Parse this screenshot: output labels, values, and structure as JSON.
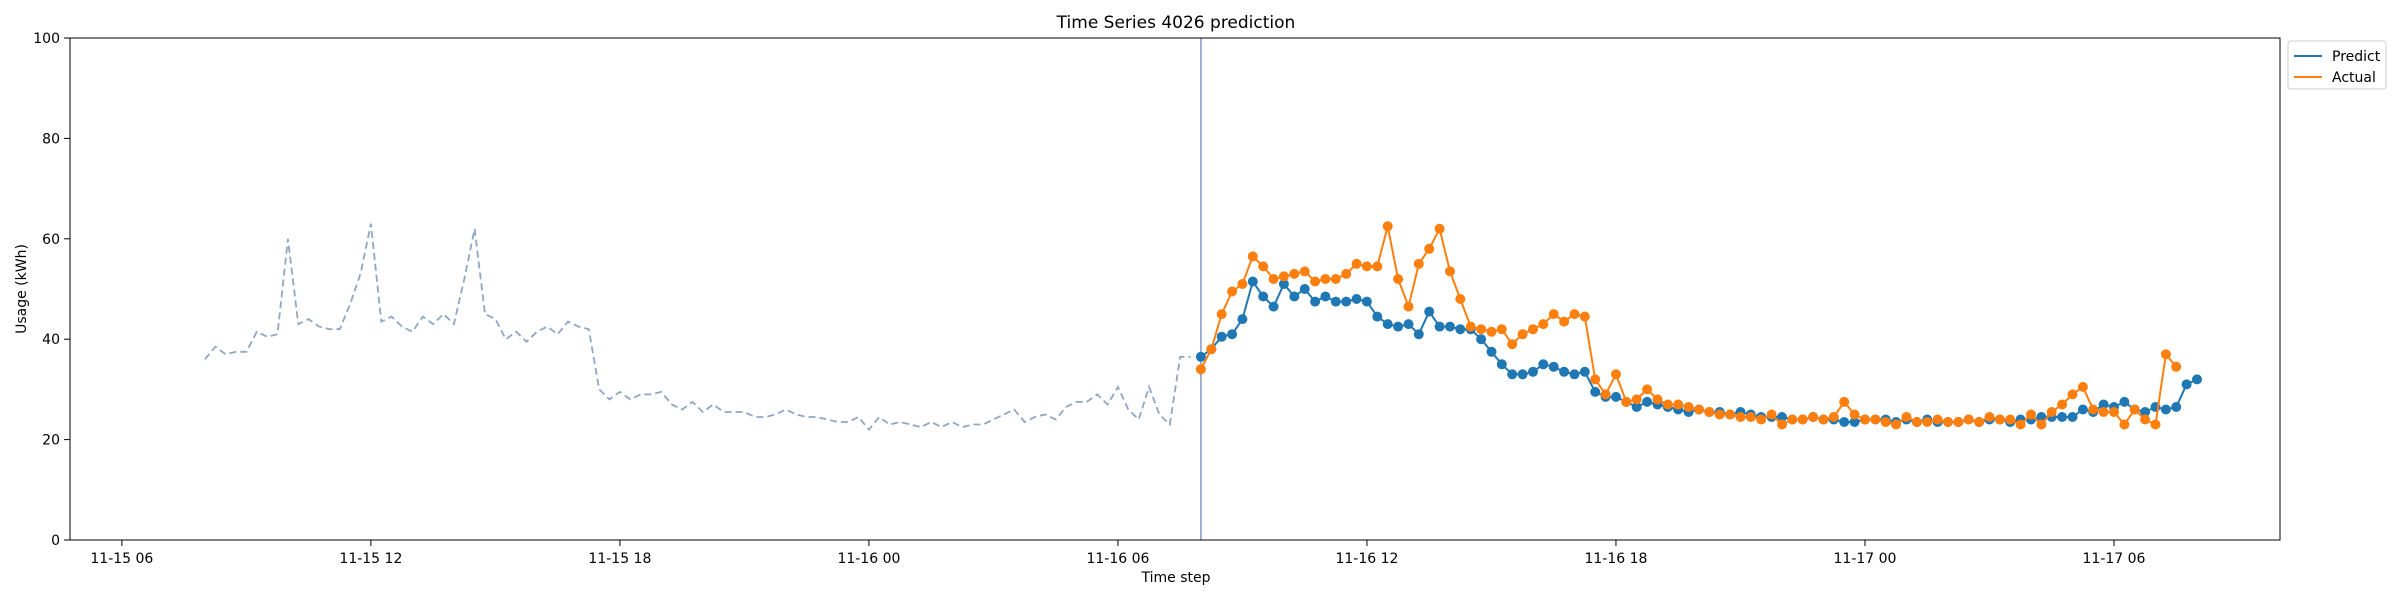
{
  "chart_data": {
    "type": "line",
    "title": "Time Series 4026 prediction",
    "xlabel": "Time step",
    "ylabel": "Usage (kWh)",
    "ylim": [
      0,
      100
    ],
    "yticks": [
      0,
      20,
      40,
      60,
      80,
      100
    ],
    "x_start": "2024-11-15 08:00",
    "x_step_minutes": 15,
    "x_range": [
      "2024-11-15 04:45",
      "2024-11-17 10:00"
    ],
    "xticks": [
      {
        "value": "2024-11-15 06:00",
        "label": "11-15 06"
      },
      {
        "value": "2024-11-15 12:00",
        "label": "11-15 12"
      },
      {
        "value": "2024-11-15 18:00",
        "label": "11-15 18"
      },
      {
        "value": "2024-11-16 00:00",
        "label": "11-16 00"
      },
      {
        "value": "2024-11-16 06:00",
        "label": "11-16 06"
      },
      {
        "value": "2024-11-16 12:00",
        "label": "11-16 12"
      },
      {
        "value": "2024-11-16 18:00",
        "label": "11-16 18"
      },
      {
        "value": "2024-11-17 00:00",
        "label": "11-17 00"
      },
      {
        "value": "2024-11-17 06:00",
        "label": "11-17 06"
      }
    ],
    "forecast_start": "2024-11-16 08:00",
    "history": {
      "start": "2024-11-15 08:00",
      "color": "#8fa6c4",
      "style": "dashed",
      "values": [
        36,
        38.5,
        37,
        37.5,
        37.5,
        41.5,
        40.5,
        41,
        60,
        43,
        44,
        42.5,
        42,
        42,
        47,
        53,
        63,
        43.5,
        44.5,
        42.5,
        41.5,
        44.5,
        43,
        45,
        43,
        52,
        62,
        45,
        44,
        40,
        41.5,
        39.5,
        41.5,
        42.5,
        41,
        43.5,
        42.5,
        42,
        30,
        28,
        29.5,
        28,
        29,
        29,
        29.5,
        27,
        26,
        27.5,
        25.5,
        27,
        25.5,
        25.5,
        25.5,
        24.5,
        24.5,
        25,
        26,
        25,
        24.5,
        24.5,
        24,
        23.5,
        23.5,
        24.5,
        22,
        24.5,
        23,
        23.5,
        23,
        22.5,
        23.5,
        22.5,
        23.5,
        22.5,
        23,
        23,
        24,
        25,
        26,
        23.5,
        24.5,
        25,
        24,
        26.5,
        27.5,
        27.5,
        29,
        27,
        30.5,
        26,
        24,
        30.5,
        25,
        23,
        36.5,
        36.5
      ]
    },
    "series": [
      {
        "name": "Predict",
        "color": "#1f77b4",
        "start": "2024-11-16 08:00",
        "values": [
          36.5,
          38,
          40.5,
          41,
          44,
          51.5,
          48.5,
          46.5,
          51,
          48.5,
          50,
          47.5,
          48.5,
          47.5,
          47.5,
          48,
          47.5,
          44.5,
          43,
          42.5,
          43,
          41,
          45.5,
          42.5,
          42.5,
          42,
          42,
          40,
          37.5,
          35,
          33,
          33,
          33.5,
          35,
          34.5,
          33.5,
          33,
          33.5,
          29.5,
          28.5,
          28.5,
          27.5,
          26.5,
          27.5,
          27,
          26.5,
          26,
          25.5,
          26,
          25.5,
          25.5,
          25,
          25.5,
          25,
          24.5,
          24.5,
          24.5,
          24,
          24,
          24.5,
          24,
          24,
          23.5,
          23.5,
          24,
          24,
          24,
          23.5,
          24,
          23.5,
          24,
          23.5,
          23.5,
          23.5,
          24,
          23.5,
          24,
          24,
          23.5,
          24,
          24,
          24.5,
          24.5,
          24.5,
          24.5,
          26,
          25.5,
          27,
          26.5,
          27.5,
          26,
          25.5,
          26.5,
          26,
          26.5,
          31,
          32
        ]
      },
      {
        "name": "Actual",
        "color": "#ff7f0e",
        "start": "2024-11-16 08:00",
        "values": [
          34,
          38,
          45,
          49.5,
          51,
          56.5,
          54.5,
          52,
          52.5,
          53,
          53.5,
          51.5,
          52,
          52,
          53,
          55,
          54.5,
          54.5,
          62.5,
          52,
          46.5,
          55,
          58,
          62,
          53.5,
          48,
          42.5,
          42,
          41.5,
          42,
          39,
          41,
          42,
          43,
          45,
          43.5,
          45,
          44.5,
          32,
          29,
          33,
          27.5,
          28,
          30,
          28,
          27,
          27,
          26.5,
          26,
          25.5,
          25,
          25,
          24.5,
          24.5,
          24,
          25,
          23,
          24,
          24,
          24.5,
          24,
          24.5,
          27.5,
          25,
          24,
          24,
          23.5,
          23,
          24.5,
          23.5,
          23.5,
          24,
          23.5,
          23.5,
          24,
          23.5,
          24.5,
          24,
          24,
          23,
          25,
          23,
          25.5,
          27,
          29,
          30.5,
          26,
          25.5,
          25.5,
          23,
          26,
          24,
          23,
          37,
          34.5
        ]
      }
    ],
    "legend": {
      "placement": "outside-top-right",
      "entries": [
        "Predict",
        "Actual"
      ]
    },
    "grid": false
  }
}
